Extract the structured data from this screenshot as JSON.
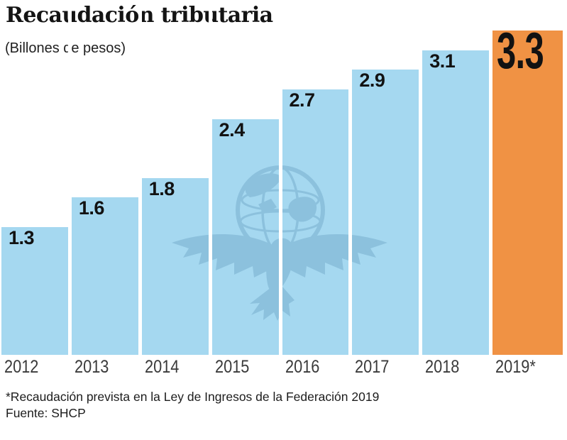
{
  "header": {
    "title": "Recaudación tributaria",
    "subtitle": "(Billones de pesos)"
  },
  "chart_data": {
    "type": "bar",
    "title": "Recaudación tributaria",
    "subtitle": "(Billones de pesos)",
    "xlabel": "",
    "ylabel": "Billones de pesos",
    "categories": [
      "2012",
      "2013",
      "2014",
      "2015",
      "2016",
      "2017",
      "2018",
      "2019*"
    ],
    "values": [
      1.3,
      1.6,
      1.8,
      2.4,
      2.7,
      2.9,
      3.1,
      3.3
    ],
    "value_labels": [
      "1.3",
      "1.6",
      "1.8",
      "2.4",
      "2.7",
      "2.9",
      "3.1",
      "3.3"
    ],
    "ylim": [
      0,
      3.6
    ],
    "grid": false,
    "legend": false,
    "bar_color": "#a5d8f0",
    "highlight_color": "#f09244",
    "highlight_index": 7,
    "label_position": "inside-top-left"
  },
  "watermark": {
    "name": "eagle-globe-newspaper-logo",
    "color": "#8bc0dc"
  },
  "footer": {
    "note": "*Recaudación prevista en la Ley de Ingresos de la Federación 2019",
    "source": "Fuente: SHCP"
  }
}
